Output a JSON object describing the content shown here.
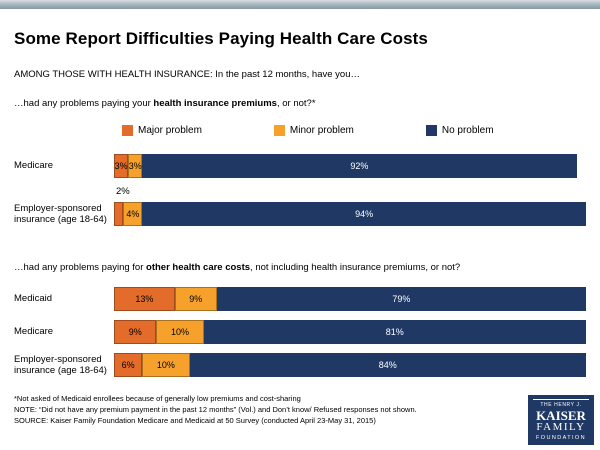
{
  "header": {
    "title": "Some Report Difficulties Paying Health Care Costs",
    "subtitle": "AMONG THOSE WITH HEALTH INSURANCE: In the past 12 months, have you…"
  },
  "questions": {
    "q1": {
      "prefix": "…had any problems paying your ",
      "bold": "health insurance premiums",
      "suffix": ", or not?*"
    },
    "q2": {
      "prefix": "…had any problems paying for ",
      "bold": "other health care costs",
      "suffix": ", not including health insurance premiums, or not?"
    }
  },
  "colors": {
    "major": "#e36c2a",
    "minor": "#f5a12b",
    "no_problem": "#1f3864"
  },
  "legend": {
    "items": [
      {
        "label": "Major problem"
      },
      {
        "label": "Minor problem"
      },
      {
        "label": "No problem"
      }
    ]
  },
  "chart_data": [
    {
      "type": "bar",
      "orientation": "horizontal",
      "stacked": true,
      "question": "…had any problems paying your health insurance premiums, or not?*",
      "series_names": [
        "Major problem",
        "Minor problem",
        "No problem"
      ],
      "categories": [
        "Medicare",
        "Employer-sponsored insurance (age 18-64)"
      ],
      "xlim": [
        0,
        100
      ],
      "rows": [
        {
          "category": "Medicare",
          "values": [
            3,
            3,
            92
          ],
          "labels": [
            "3%",
            "3%",
            "92%"
          ]
        },
        {
          "category": "Employer-sponsored insurance (age 18-64)",
          "values": [
            2,
            4,
            94
          ],
          "labels": [
            "",
            "4%",
            "94%"
          ],
          "outside_label": "2%"
        }
      ]
    },
    {
      "type": "bar",
      "orientation": "horizontal",
      "stacked": true,
      "question": "…had any problems paying for other health care costs, not including health insurance premiums, or not?",
      "series_names": [
        "Major problem",
        "Minor problem",
        "No problem"
      ],
      "categories": [
        "Medicaid",
        "Medicare",
        "Employer-sponsored insurance (age 18-64)"
      ],
      "xlim": [
        0,
        100
      ],
      "rows": [
        {
          "category": "Medicaid",
          "values": [
            13,
            9,
            79
          ],
          "labels": [
            "13%",
            "9%",
            "79%"
          ]
        },
        {
          "category": "Medicare",
          "values": [
            9,
            10,
            81
          ],
          "labels": [
            "9%",
            "10%",
            "81%"
          ]
        },
        {
          "category": "Employer-sponsored insurance (age 18-64)",
          "values": [
            6,
            10,
            84
          ],
          "labels": [
            "6%",
            "10%",
            "84%"
          ]
        }
      ]
    }
  ],
  "footnotes": [
    "*Not asked of Medicaid enrollees because of generally low premiums and cost-sharing",
    "NOTE: “Did not have any premium payment in the past 12 months” (Vol.) and Don’t know/ Refused responses not shown.",
    "SOURCE: Kaiser Family Foundation Medicare and Medicaid at 50 Survey (conducted April 23-May 31, 2015)"
  ],
  "logo": {
    "line1": "THE HENRY J.",
    "line2": "KAISER",
    "line3": "FAMILY",
    "line4": "FOUNDATION"
  }
}
